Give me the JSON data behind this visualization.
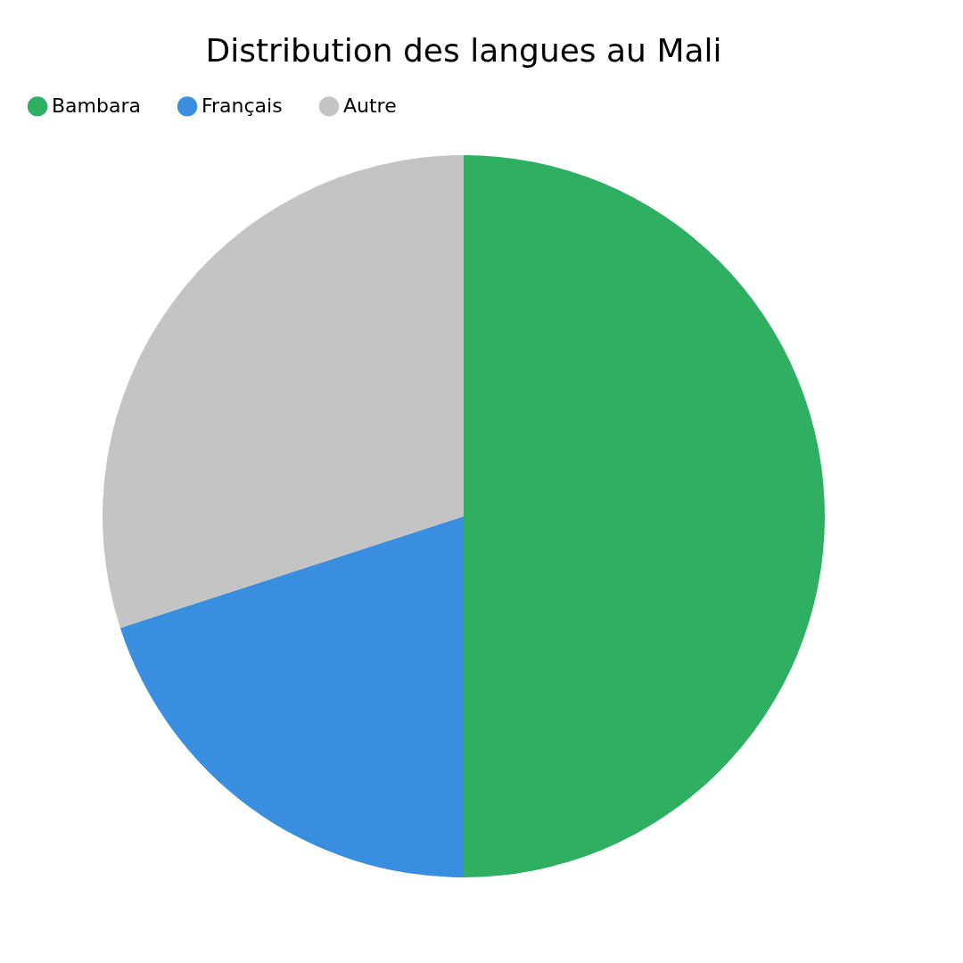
{
  "chart_data": {
    "type": "pie",
    "title": "Distribution des langues au Mali",
    "categories": [
      "Bambara",
      "Français",
      "Autre"
    ],
    "values": [
      50,
      20,
      30
    ],
    "colors": [
      "#2eaf62",
      "#3a8ee0",
      "#c4c4c4"
    ],
    "legend": "top"
  }
}
